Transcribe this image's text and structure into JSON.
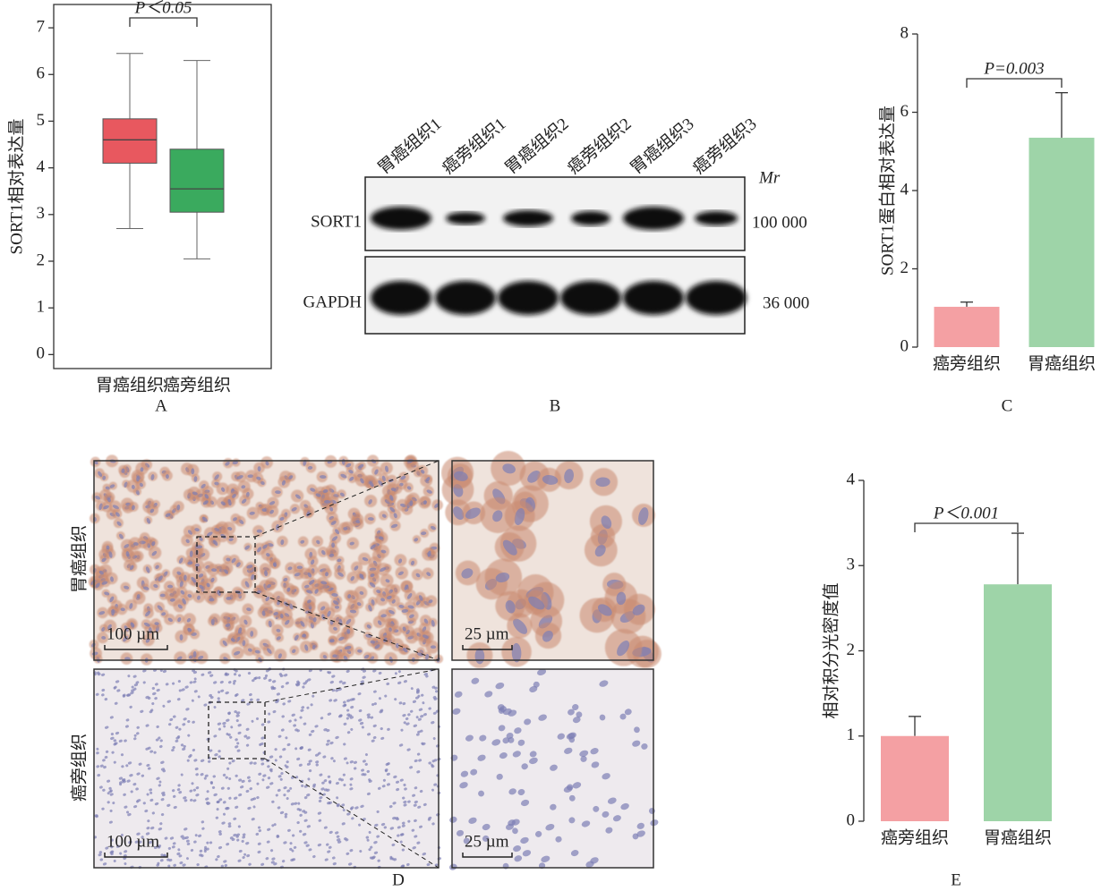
{
  "chart_data": [
    {
      "type": "box",
      "label": "A",
      "y_label": "SORT1相对表达量",
      "annotation": "P＜0.05",
      "categories": [
        "胃癌组织",
        "癌旁组织"
      ],
      "colors": [
        "#e8585f",
        "#3aaa5e"
      ],
      "boxes": [
        {
          "whisker_low": 2.7,
          "q1": 4.1,
          "median": 4.6,
          "q3": 5.05,
          "whisker_high": 6.45
        },
        {
          "whisker_low": 2.05,
          "q1": 3.05,
          "median": 3.55,
          "q3": 4.4,
          "whisker_high": 6.3
        }
      ],
      "ylim": [
        -0.3,
        7.5
      ],
      "yticks": [
        0,
        1,
        2,
        3,
        4,
        5,
        6,
        7
      ]
    },
    {
      "type": "bar",
      "label": "C",
      "y_label": "SORT1蛋白相对表达量",
      "annotation": "P=0.003",
      "categories": [
        "癌旁组织",
        "胃癌组织"
      ],
      "colors": [
        "#f4a0a3",
        "#9ed4a8"
      ],
      "values": [
        1.03,
        5.35
      ],
      "errors": [
        0.12,
        1.15
      ],
      "ylim": [
        0,
        8
      ],
      "yticks": [
        0,
        2,
        4,
        6,
        8
      ]
    },
    {
      "type": "bar",
      "label": "E",
      "y_label": "相对积分光密度值",
      "annotation": "P＜0.001",
      "categories": [
        "癌旁组织",
        "胃癌组织"
      ],
      "colors": [
        "#f4a0a3",
        "#9ed4a8"
      ],
      "values": [
        1.0,
        2.78
      ],
      "errors": [
        0.23,
        0.6
      ],
      "ylim": [
        0,
        4
      ],
      "yticks": [
        0,
        1,
        2,
        3,
        4
      ]
    }
  ],
  "western_blot": {
    "label": "B",
    "lanes": [
      "胃癌组织1",
      "癌旁组织1",
      "胃癌组织2",
      "癌旁组织2",
      "胃癌组织3",
      "癌旁组织3"
    ],
    "proteins": [
      "SORT1",
      "GAPDH"
    ],
    "mr_header": "Mr",
    "mr_values": [
      "100 000",
      "36 000"
    ]
  },
  "ihc": {
    "label": "D",
    "rows": [
      "胃癌组织",
      "癌旁组织"
    ],
    "scale_bars": [
      "100 µm",
      "25 µm"
    ]
  }
}
